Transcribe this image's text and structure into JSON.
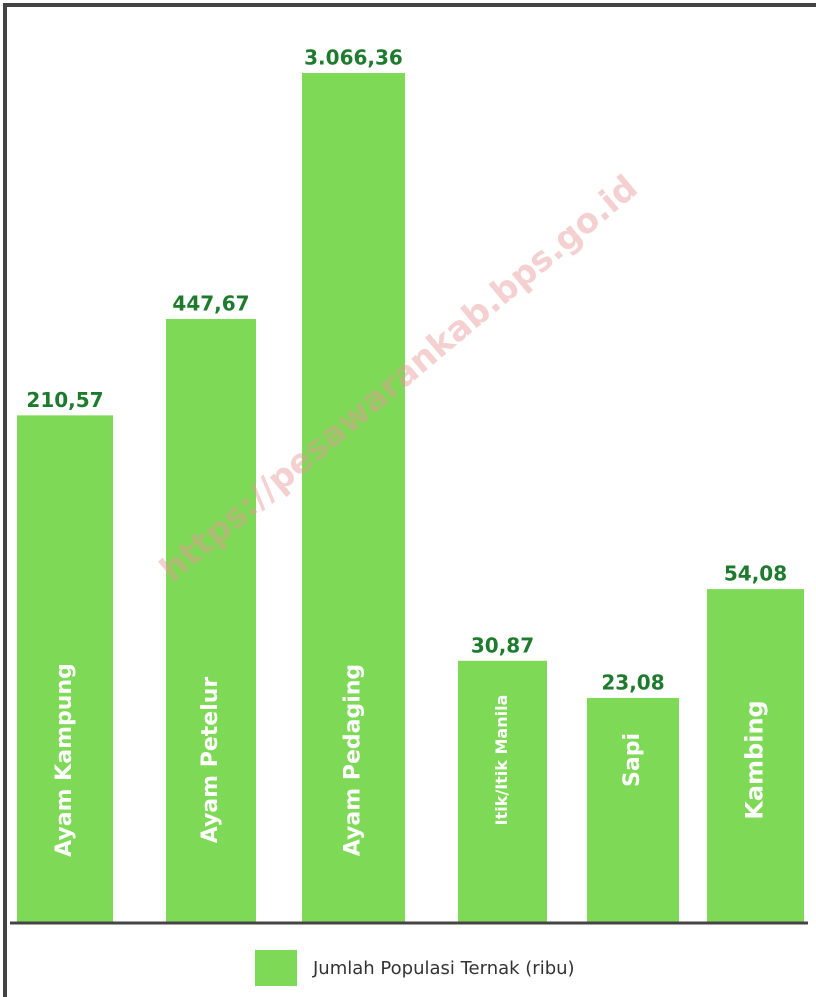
{
  "chart_data": {
    "type": "bar",
    "categories": [
      "Ayam Kampung",
      "Ayam Petelur",
      "Ayam Pedaging",
      "Itik/Itik Manila",
      "Sapi",
      "Kambing"
    ],
    "series": [
      {
        "name": "Jumlah Populasi Ternak (ribu)",
        "color": "#7ed957",
        "values": [
          210.57,
          447.67,
          3066.36,
          30.87,
          23.08,
          54.08
        ],
        "value_labels": [
          "210,57",
          "447,67",
          "3.066,36",
          "30,87",
          "23,08",
          "54,08"
        ]
      }
    ],
    "ylim": [
      4,
      4000
    ],
    "log_scale": true,
    "watermark": "https://pesawarankab.bps.go.id"
  }
}
